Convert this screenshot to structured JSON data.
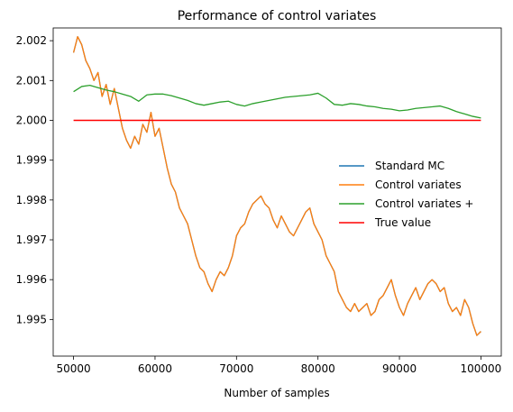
{
  "chart_data": {
    "type": "line",
    "title": "Performance of control variates",
    "xlabel": "Number of samples",
    "ylabel": "",
    "xlim": [
      47500,
      102500
    ],
    "ylim": [
      1.99408,
      2.00232
    ],
    "x_ticks": [
      50000,
      60000,
      70000,
      80000,
      90000,
      100000
    ],
    "x_tick_labels": [
      "50000",
      "60000",
      "70000",
      "80000",
      "90000",
      "100000"
    ],
    "y_ticks": [
      1.995,
      1.996,
      1.997,
      1.998,
      1.999,
      2.0,
      2.001,
      2.002
    ],
    "y_tick_labels": [
      "1.995",
      "1.996",
      "1.997",
      "1.998",
      "1.999",
      "2.000",
      "2.001",
      "2.002"
    ],
    "grid": false,
    "legend_position": "center-right",
    "series": [
      {
        "name": "Standard MC",
        "color": "#1f77b4",
        "x": [
          50000,
          50500,
          51000,
          51500,
          52000,
          52500,
          53000,
          53500,
          54000,
          54500,
          55000,
          55500,
          56000,
          56500,
          57000,
          57500,
          58000,
          58500,
          59000,
          59500,
          60000,
          60500,
          61000,
          61500,
          62000,
          62500,
          63000,
          63500,
          64000,
          64500,
          65000,
          65500,
          66000,
          66500,
          67000,
          67500,
          68000,
          68500,
          69000,
          69500,
          70000,
          70500,
          71000,
          71500,
          72000,
          72500,
          73000,
          73500,
          74000,
          74500,
          75000,
          75500,
          76000,
          76500,
          77000,
          77500,
          78000,
          78500,
          79000,
          79500,
          80000,
          80500,
          81000,
          81500,
          82000,
          82500,
          83000,
          83500,
          84000,
          84500,
          85000,
          85500,
          86000,
          86500,
          87000,
          87500,
          88000,
          88500,
          89000,
          89500,
          90000,
          90500,
          91000,
          91500,
          92000,
          92500,
          93000,
          93500,
          94000,
          94500,
          95000,
          95500,
          96000,
          96500,
          97000,
          97500,
          98000,
          98500,
          99000,
          99500,
          100000
        ],
        "values": [
          2.0017,
          2.0021,
          2.0019,
          2.0015,
          2.0013,
          2.001,
          2.0012,
          2.0006,
          2.0009,
          2.0004,
          2.0008,
          2.0003,
          1.9998,
          1.9995,
          1.9993,
          1.9996,
          1.9994,
          1.9999,
          1.9997,
          2.0002,
          1.9996,
          1.9998,
          1.9993,
          1.9988,
          1.9984,
          1.9982,
          1.9978,
          1.9976,
          1.9974,
          1.997,
          1.9966,
          1.9963,
          1.9962,
          1.9959,
          1.9957,
          1.996,
          1.9962,
          1.9961,
          1.9963,
          1.9966,
          1.9971,
          1.9973,
          1.9974,
          1.9977,
          1.9979,
          1.998,
          1.9981,
          1.9979,
          1.9978,
          1.9975,
          1.9973,
          1.9976,
          1.9974,
          1.9972,
          1.9971,
          1.9973,
          1.9975,
          1.9977,
          1.9978,
          1.9974,
          1.9972,
          1.997,
          1.9966,
          1.9964,
          1.9962,
          1.9957,
          1.9955,
          1.9953,
          1.9952,
          1.9954,
          1.9952,
          1.9953,
          1.9954,
          1.9951,
          1.9952,
          1.9955,
          1.9956,
          1.9958,
          1.996,
          1.9956,
          1.9953,
          1.9951,
          1.9954,
          1.9956,
          1.9958,
          1.9955,
          1.9957,
          1.9959,
          1.996,
          1.9959,
          1.9957,
          1.9958,
          1.9954,
          1.9952,
          1.9953,
          1.9951,
          1.9955,
          1.9953,
          1.9949,
          1.9946,
          1.9947
        ]
      },
      {
        "name": "Control variates",
        "color": "#ff7f0e",
        "x": [
          50000,
          50500,
          51000,
          51500,
          52000,
          52500,
          53000,
          53500,
          54000,
          54500,
          55000,
          55500,
          56000,
          56500,
          57000,
          57500,
          58000,
          58500,
          59000,
          59500,
          60000,
          60500,
          61000,
          61500,
          62000,
          62500,
          63000,
          63500,
          64000,
          64500,
          65000,
          65500,
          66000,
          66500,
          67000,
          67500,
          68000,
          68500,
          69000,
          69500,
          70000,
          70500,
          71000,
          71500,
          72000,
          72500,
          73000,
          73500,
          74000,
          74500,
          75000,
          75500,
          76000,
          76500,
          77000,
          77500,
          78000,
          78500,
          79000,
          79500,
          80000,
          80500,
          81000,
          81500,
          82000,
          82500,
          83000,
          83500,
          84000,
          84500,
          85000,
          85500,
          86000,
          86500,
          87000,
          87500,
          88000,
          88500,
          89000,
          89500,
          90000,
          90500,
          91000,
          91500,
          92000,
          92500,
          93000,
          93500,
          94000,
          94500,
          95000,
          95500,
          96000,
          96500,
          97000,
          97500,
          98000,
          98500,
          99000,
          99500,
          100000
        ],
        "values": [
          2.0017,
          2.0021,
          2.0019,
          2.0015,
          2.0013,
          2.001,
          2.0012,
          2.0006,
          2.0009,
          2.0004,
          2.0008,
          2.0003,
          1.9998,
          1.9995,
          1.9993,
          1.9996,
          1.9994,
          1.9999,
          1.9997,
          2.0002,
          1.9996,
          1.9998,
          1.9993,
          1.9988,
          1.9984,
          1.9982,
          1.9978,
          1.9976,
          1.9974,
          1.997,
          1.9966,
          1.9963,
          1.9962,
          1.9959,
          1.9957,
          1.996,
          1.9962,
          1.9961,
          1.9963,
          1.9966,
          1.9971,
          1.9973,
          1.9974,
          1.9977,
          1.9979,
          1.998,
          1.9981,
          1.9979,
          1.9978,
          1.9975,
          1.9973,
          1.9976,
          1.9974,
          1.9972,
          1.9971,
          1.9973,
          1.9975,
          1.9977,
          1.9978,
          1.9974,
          1.9972,
          1.997,
          1.9966,
          1.9964,
          1.9962,
          1.9957,
          1.9955,
          1.9953,
          1.9952,
          1.9954,
          1.9952,
          1.9953,
          1.9954,
          1.9951,
          1.9952,
          1.9955,
          1.9956,
          1.9958,
          1.996,
          1.9956,
          1.9953,
          1.9951,
          1.9954,
          1.9956,
          1.9958,
          1.9955,
          1.9957,
          1.9959,
          1.996,
          1.9959,
          1.9957,
          1.9958,
          1.9954,
          1.9952,
          1.9953,
          1.9951,
          1.9955,
          1.9953,
          1.9949,
          1.9946,
          1.9947
        ]
      },
      {
        "name": "Control variates +",
        "color": "#2ca02c",
        "x": [
          50000,
          51000,
          52000,
          53000,
          54000,
          55000,
          56000,
          57000,
          58000,
          59000,
          60000,
          61000,
          62000,
          63000,
          64000,
          65000,
          66000,
          67000,
          68000,
          69000,
          70000,
          71000,
          72000,
          73000,
          74000,
          75000,
          76000,
          77000,
          78000,
          79000,
          80000,
          81000,
          82000,
          83000,
          84000,
          85000,
          86000,
          87000,
          88000,
          89000,
          90000,
          91000,
          92000,
          93000,
          94000,
          95000,
          96000,
          97000,
          98000,
          99000,
          100000
        ],
        "values": [
          2.00072,
          2.00085,
          2.00088,
          2.00082,
          2.00076,
          2.00072,
          2.00066,
          2.0006,
          2.00048,
          2.00064,
          2.00066,
          2.00066,
          2.00062,
          2.00056,
          2.0005,
          2.00042,
          2.00038,
          2.00042,
          2.00046,
          2.00048,
          2.0004,
          2.00036,
          2.00042,
          2.00046,
          2.0005,
          2.00054,
          2.00058,
          2.0006,
          2.00062,
          2.00064,
          2.00068,
          2.00056,
          2.0004,
          2.00038,
          2.00042,
          2.0004,
          2.00036,
          2.00034,
          2.0003,
          2.00028,
          2.00024,
          2.00026,
          2.0003,
          2.00032,
          2.00034,
          2.00036,
          2.0003,
          2.00022,
          2.00016,
          2.0001,
          2.00006
        ]
      },
      {
        "name": "True value",
        "color": "#ff0000",
        "x": [
          50000,
          100000
        ],
        "values": [
          2.0,
          2.0
        ]
      }
    ]
  }
}
